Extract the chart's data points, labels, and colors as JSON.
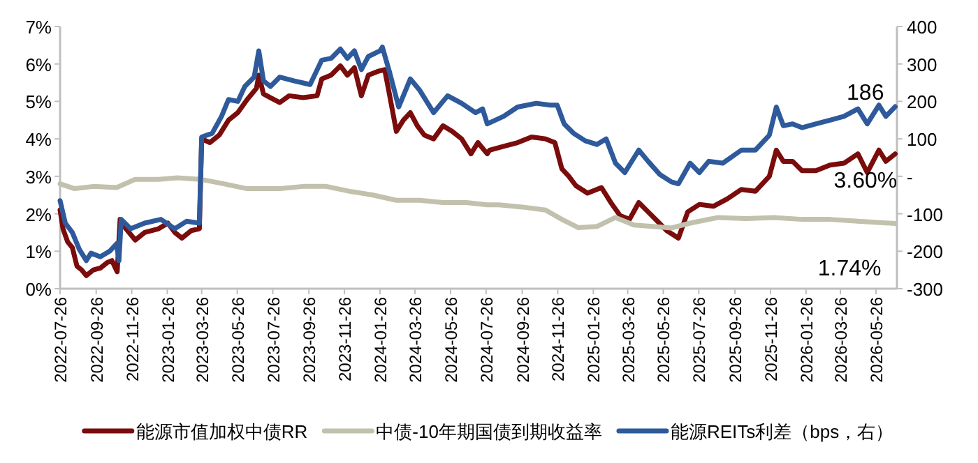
{
  "chart_data": {
    "type": "line",
    "xlim": [
      "2022-07-26",
      "2026-07-01"
    ],
    "xticks": [
      "2022-07-26",
      "2022-09-26",
      "2022-11-26",
      "2023-01-26",
      "2023-03-26",
      "2023-05-26",
      "2023-07-26",
      "2023-09-26",
      "2023-11-26",
      "2024-01-26",
      "2024-03-26",
      "2024-05-26",
      "2024-07-26",
      "2024-09-26",
      "2024-11-26",
      "2025-01-26",
      "2025-03-26",
      "2025-05-26",
      "2025-07-26",
      "2025-09-26",
      "2025-11-26",
      "2026-01-26",
      "2026-03-26",
      "2026-05-26"
    ],
    "ylim": [
      0,
      7
    ],
    "yticks": [
      {
        "value": 0,
        "label": "0%"
      },
      {
        "value": 1,
        "label": "1%"
      },
      {
        "value": 2,
        "label": "2%"
      },
      {
        "value": 3,
        "label": "3%"
      },
      {
        "value": 4,
        "label": "4%"
      },
      {
        "value": 5,
        "label": "5%"
      },
      {
        "value": 6,
        "label": "6%"
      },
      {
        "value": 7,
        "label": "7%"
      }
    ],
    "y2lim": [
      -300,
      400
    ],
    "y2ticks": [
      -300,
      -200,
      -100,
      {
        "value": 0,
        "label": "-"
      },
      100,
      200,
      300,
      400
    ],
    "legend": "bottom",
    "series": [
      {
        "name": "能源市值加权中债RR",
        "color": "#7b0c0c",
        "x": [
          "2022-07-26",
          "2022-07-31",
          "2022-08-08",
          "2022-08-16",
          "2022-08-24",
          "2022-09-01",
          "2022-09-09",
          "2022-09-21",
          "2022-10-03",
          "2022-10-15",
          "2022-10-23",
          "2022-10-29",
          "2022-11-01",
          "2022-11-06",
          "2022-11-16",
          "2022-12-02",
          "2022-12-18",
          "2023-01-11",
          "2023-01-27",
          "2023-02-08",
          "2023-02-20",
          "2023-03-08",
          "2023-03-22",
          "2023-03-26",
          "2023-04-09",
          "2023-04-25",
          "2023-05-11",
          "2023-05-27",
          "2023-06-12",
          "2023-06-28",
          "2023-07-02",
          "2023-07-10",
          "2023-07-22",
          "2023-08-07",
          "2023-08-23",
          "2023-09-16",
          "2023-10-10",
          "2023-10-18",
          "2023-11-03",
          "2023-11-19",
          "2023-12-01",
          "2023-12-13",
          "2023-12-25",
          "2024-01-06",
          "2024-01-22",
          "2024-02-03",
          "2024-02-11",
          "2024-02-23",
          "2024-03-06",
          "2024-03-18",
          "2024-03-30",
          "2024-04-11",
          "2024-04-27",
          "2024-05-13",
          "2024-05-29",
          "2024-06-14",
          "2024-06-30",
          "2024-07-12",
          "2024-07-28",
          "2024-08-01",
          "2024-08-25",
          "2024-09-18",
          "2024-10-12",
          "2024-11-05",
          "2024-11-21",
          "2024-12-03",
          "2024-12-15",
          "2024-12-27",
          "2025-01-16",
          "2025-02-09",
          "2025-02-25",
          "2025-03-13",
          "2025-03-29",
          "2025-04-14",
          "2025-04-30",
          "2025-05-16",
          "2025-06-01",
          "2025-06-21",
          "2025-07-07",
          "2025-07-27",
          "2025-08-20",
          "2025-09-13",
          "2025-10-07",
          "2025-10-31",
          "2025-11-24",
          "2025-12-06",
          "2025-12-18",
          "2026-01-03",
          "2026-01-19",
          "2026-02-12",
          "2026-03-08",
          "2026-04-01",
          "2026-04-25",
          "2026-05-11",
          "2026-05-31",
          "2026-06-12",
          "2026-06-28"
        ],
        "values": [
          2.1,
          1.6,
          1.25,
          1.1,
          0.6,
          0.5,
          0.35,
          0.5,
          0.55,
          0.7,
          0.75,
          0.55,
          0.45,
          1.85,
          1.6,
          1.3,
          1.5,
          1.6,
          1.75,
          1.5,
          1.35,
          1.55,
          1.6,
          4.0,
          3.9,
          4.1,
          4.5,
          4.7,
          5.05,
          5.35,
          5.7,
          5.2,
          5.1,
          4.97,
          5.15,
          5.1,
          5.15,
          5.6,
          5.7,
          5.95,
          5.7,
          5.9,
          5.15,
          5.7,
          5.8,
          5.85,
          5.2,
          4.2,
          4.5,
          4.7,
          4.35,
          4.1,
          4.0,
          4.35,
          4.2,
          4.0,
          3.6,
          3.9,
          3.6,
          3.7,
          3.8,
          3.9,
          4.05,
          4.0,
          3.9,
          3.2,
          3.0,
          2.75,
          2.55,
          2.7,
          2.3,
          1.95,
          1.85,
          2.3,
          2.05,
          1.8,
          1.55,
          1.35,
          2.05,
          2.25,
          2.2,
          2.4,
          2.65,
          2.6,
          3.0,
          3.7,
          3.4,
          3.4,
          3.15,
          3.15,
          3.3,
          3.35,
          3.6,
          3.1,
          3.7,
          3.4,
          3.6
        ],
        "value_labels": [
          null,
          null,
          null,
          null,
          null,
          null,
          null,
          null,
          null,
          null,
          null,
          null,
          null,
          null,
          null,
          null,
          null,
          null,
          null,
          null,
          null,
          null,
          null,
          null,
          null,
          null,
          null,
          null,
          null,
          null,
          null,
          null,
          null,
          null,
          null,
          null,
          null,
          null,
          null,
          null,
          null,
          null,
          null,
          null,
          null,
          null,
          null,
          null,
          null,
          null,
          null,
          null,
          null,
          null,
          null,
          null,
          null,
          null,
          null,
          null,
          null,
          null,
          null,
          null,
          null,
          null,
          null,
          null,
          null,
          null,
          null,
          null,
          null,
          null,
          null,
          null,
          null,
          null,
          null,
          null,
          null,
          null,
          null,
          null,
          null,
          null,
          null,
          null,
          null,
          null,
          null,
          null,
          null,
          null,
          null,
          null,
          "3.60%"
        ]
      },
      {
        "name": "中债-10年期国债到期收益率",
        "color": "#c2c1ad",
        "x": [
          "2022-07-26",
          "2022-08-20",
          "2022-09-21",
          "2022-10-31",
          "2022-12-02",
          "2023-01-11",
          "2023-02-12",
          "2023-03-24",
          "2023-05-03",
          "2023-06-12",
          "2023-08-07",
          "2023-09-16",
          "2023-10-26",
          "2023-12-05",
          "2024-01-14",
          "2024-02-23",
          "2024-04-03",
          "2024-05-13",
          "2024-06-22",
          "2024-07-28",
          "2024-08-17",
          "2024-09-26",
          "2024-11-05",
          "2024-12-03",
          "2024-12-31",
          "2025-02-01",
          "2025-03-05",
          "2025-04-06",
          "2025-05-08",
          "2025-06-09",
          "2025-07-11",
          "2025-08-28",
          "2025-10-15",
          "2025-12-02",
          "2026-01-19",
          "2026-03-08",
          "2026-04-25",
          "2026-06-28"
        ],
        "values": [
          2.8,
          2.67,
          2.73,
          2.7,
          2.92,
          2.92,
          2.96,
          2.92,
          2.8,
          2.67,
          2.67,
          2.73,
          2.73,
          2.6,
          2.5,
          2.36,
          2.36,
          2.3,
          2.3,
          2.24,
          2.24,
          2.18,
          2.1,
          1.85,
          1.63,
          1.66,
          1.9,
          1.7,
          1.66,
          1.62,
          1.75,
          1.9,
          1.87,
          1.9,
          1.85,
          1.85,
          1.8,
          1.74
        ],
        "value_labels": [
          null,
          null,
          null,
          null,
          null,
          null,
          null,
          null,
          null,
          null,
          null,
          null,
          null,
          null,
          null,
          null,
          null,
          null,
          null,
          null,
          null,
          null,
          null,
          null,
          null,
          null,
          null,
          null,
          null,
          null,
          null,
          null,
          null,
          null,
          null,
          null,
          null,
          "1.74%"
        ]
      },
      {
        "name": "能源REITs利差（bps，右）",
        "color": "#2e5a9c",
        "axis": "y2",
        "x": [
          "2022-07-26",
          "2022-08-04",
          "2022-08-16",
          "2022-08-28",
          "2022-09-09",
          "2022-09-17",
          "2022-10-03",
          "2022-10-19",
          "2022-10-31",
          "2022-11-04",
          "2022-11-08",
          "2022-11-24",
          "2022-12-18",
          "2023-01-15",
          "2023-02-08",
          "2023-02-28",
          "2023-03-22",
          "2023-03-26",
          "2023-04-13",
          "2023-04-29",
          "2023-05-11",
          "2023-05-27",
          "2023-06-08",
          "2023-06-24",
          "2023-07-02",
          "2023-07-10",
          "2023-07-22",
          "2023-08-07",
          "2023-08-31",
          "2023-09-28",
          "2023-10-18",
          "2023-11-03",
          "2023-11-19",
          "2023-12-01",
          "2023-12-13",
          "2023-12-25",
          "2024-01-06",
          "2024-01-26",
          "2024-01-30",
          "2024-02-11",
          "2024-02-27",
          "2024-03-18",
          "2024-04-03",
          "2024-04-27",
          "2024-05-21",
          "2024-06-14",
          "2024-07-08",
          "2024-07-20",
          "2024-07-28",
          "2024-08-25",
          "2024-09-18",
          "2024-10-20",
          "2024-11-13",
          "2024-11-25",
          "2024-12-07",
          "2024-12-23",
          "2025-01-12",
          "2025-02-01",
          "2025-02-17",
          "2025-03-05",
          "2025-03-21",
          "2025-04-14",
          "2025-04-30",
          "2025-05-20",
          "2025-06-09",
          "2025-06-21",
          "2025-07-11",
          "2025-07-27",
          "2025-08-12",
          "2025-09-05",
          "2025-10-07",
          "2025-10-31",
          "2025-11-24",
          "2025-12-06",
          "2025-12-18",
          "2026-01-03",
          "2026-01-19",
          "2026-02-12",
          "2026-03-08",
          "2026-04-01",
          "2026-04-25",
          "2026-05-11",
          "2026-05-31",
          "2026-06-12",
          "2026-06-28"
        ],
        "values": [
          -65,
          -125,
          -150,
          -195,
          -225,
          -205,
          -215,
          -200,
          -180,
          -225,
          -115,
          -140,
          -125,
          -115,
          -140,
          -120,
          -125,
          105,
          115,
          160,
          205,
          200,
          240,
          265,
          335,
          255,
          240,
          265,
          255,
          245,
          310,
          315,
          340,
          315,
          335,
          285,
          320,
          335,
          345,
          280,
          185,
          260,
          230,
          170,
          215,
          195,
          170,
          180,
          140,
          160,
          185,
          195,
          190,
          190,
          140,
          115,
          95,
          85,
          100,
          35,
          10,
          70,
          40,
          5,
          -15,
          -20,
          35,
          10,
          40,
          35,
          70,
          70,
          110,
          185,
          135,
          140,
          130,
          140,
          150,
          160,
          180,
          140,
          190,
          160,
          186
        ],
        "value_labels": [
          null,
          null,
          null,
          null,
          null,
          null,
          null,
          null,
          null,
          null,
          null,
          null,
          null,
          null,
          null,
          null,
          null,
          null,
          null,
          null,
          null,
          null,
          null,
          null,
          null,
          null,
          null,
          null,
          null,
          null,
          null,
          null,
          null,
          null,
          null,
          null,
          null,
          null,
          null,
          null,
          null,
          null,
          null,
          null,
          null,
          null,
          null,
          null,
          null,
          null,
          null,
          null,
          null,
          null,
          null,
          null,
          null,
          null,
          null,
          null,
          null,
          null,
          null,
          null,
          null,
          null,
          null,
          null,
          null,
          null,
          null,
          null,
          null,
          null,
          null,
          null,
          null,
          null,
          null,
          null,
          null,
          null,
          null,
          null,
          "186"
        ]
      }
    ]
  }
}
